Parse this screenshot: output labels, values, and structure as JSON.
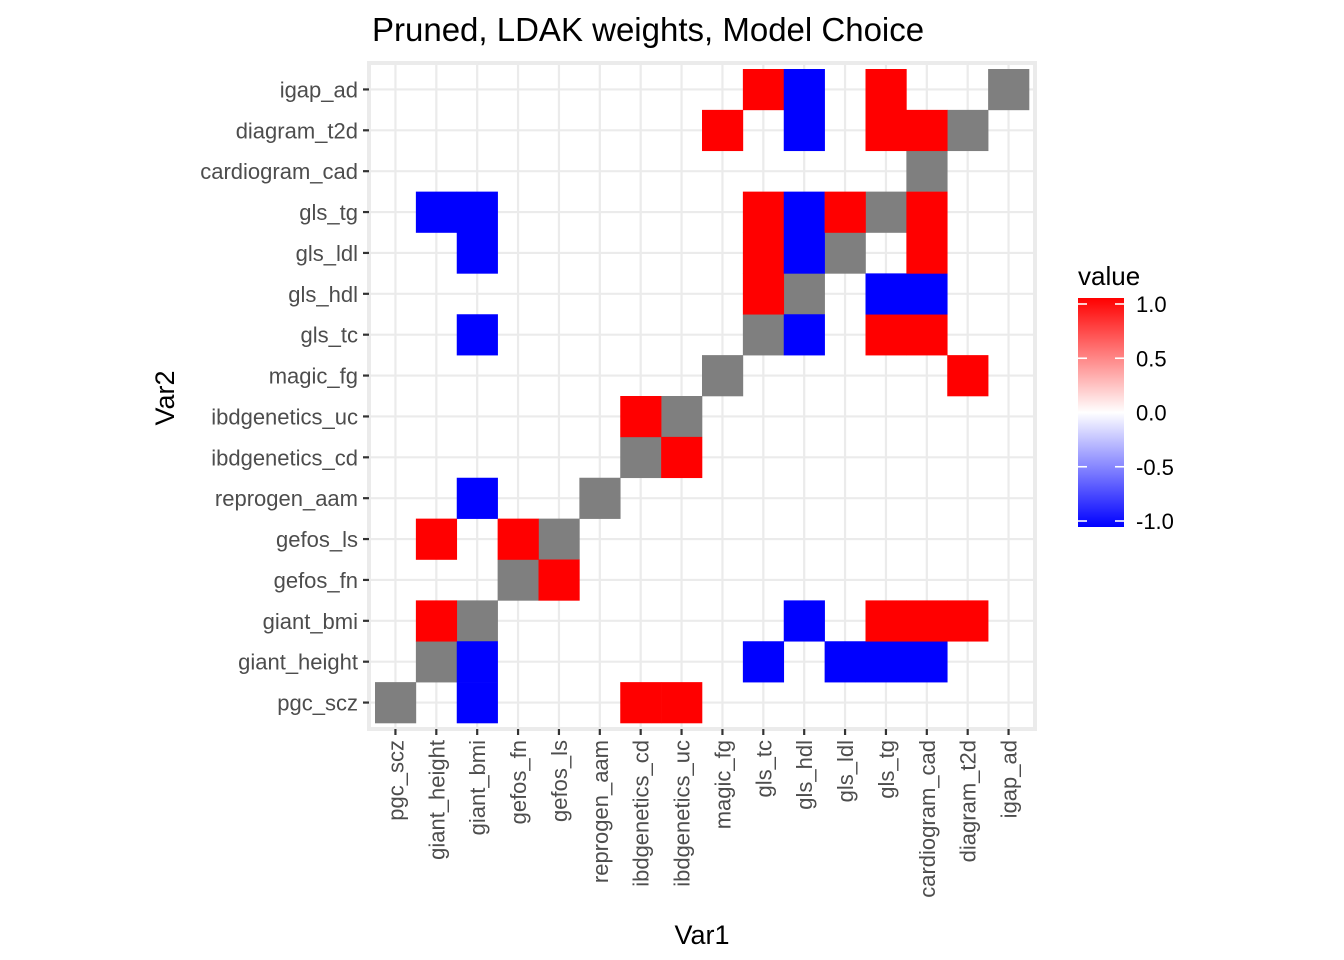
{
  "chart_data": {
    "type": "heatmap",
    "title": "Pruned, LDAK weights, Model Choice",
    "xlabel": "Var1",
    "ylabel": "Var2",
    "x_categories": [
      "pgc_scz",
      "giant_height",
      "giant_bmi",
      "gefos_fn",
      "gefos_ls",
      "reprogen_aam",
      "ibdgenetics_cd",
      "ibdgenetics_uc",
      "magic_fg",
      "gls_tc",
      "gls_hdl",
      "gls_ldl",
      "gls_tg",
      "cardiogram_cad",
      "diagram_t2d",
      "igap_ad"
    ],
    "y_categories": [
      "pgc_scz",
      "giant_height",
      "giant_bmi",
      "gefos_fn",
      "gefos_ls",
      "reprogen_aam",
      "ibdgenetics_cd",
      "ibdgenetics_uc",
      "magic_fg",
      "gls_tc",
      "gls_hdl",
      "gls_ldl",
      "gls_tg",
      "cardiogram_cad",
      "diagram_t2d",
      "igap_ad"
    ],
    "diagonal": "NA",
    "cells": [
      {
        "x": "giant_bmi",
        "y": "pgc_scz",
        "value": -1
      },
      {
        "x": "ibdgenetics_cd",
        "y": "pgc_scz",
        "value": 1
      },
      {
        "x": "ibdgenetics_uc",
        "y": "pgc_scz",
        "value": 1
      },
      {
        "x": "giant_bmi",
        "y": "giant_height",
        "value": -1
      },
      {
        "x": "gls_tc",
        "y": "giant_height",
        "value": -1
      },
      {
        "x": "gls_ldl",
        "y": "giant_height",
        "value": -1
      },
      {
        "x": "gls_tg",
        "y": "giant_height",
        "value": -1
      },
      {
        "x": "cardiogram_cad",
        "y": "giant_height",
        "value": -1
      },
      {
        "x": "giant_height",
        "y": "giant_bmi",
        "value": 1
      },
      {
        "x": "gls_hdl",
        "y": "giant_bmi",
        "value": -1
      },
      {
        "x": "gls_tg",
        "y": "giant_bmi",
        "value": 1
      },
      {
        "x": "cardiogram_cad",
        "y": "giant_bmi",
        "value": 1
      },
      {
        "x": "diagram_t2d",
        "y": "giant_bmi",
        "value": 1
      },
      {
        "x": "gefos_ls",
        "y": "gefos_fn",
        "value": 1
      },
      {
        "x": "giant_height",
        "y": "gefos_ls",
        "value": 1
      },
      {
        "x": "gefos_fn",
        "y": "gefos_ls",
        "value": 1
      },
      {
        "x": "giant_bmi",
        "y": "reprogen_aam",
        "value": -1
      },
      {
        "x": "ibdgenetics_uc",
        "y": "ibdgenetics_cd",
        "value": 1
      },
      {
        "x": "ibdgenetics_cd",
        "y": "ibdgenetics_uc",
        "value": 1
      },
      {
        "x": "diagram_t2d",
        "y": "magic_fg",
        "value": 1
      },
      {
        "x": "giant_bmi",
        "y": "gls_tc",
        "value": -1
      },
      {
        "x": "gls_hdl",
        "y": "gls_tc",
        "value": -1
      },
      {
        "x": "gls_tg",
        "y": "gls_tc",
        "value": 1
      },
      {
        "x": "cardiogram_cad",
        "y": "gls_tc",
        "value": 1
      },
      {
        "x": "gls_tc",
        "y": "gls_hdl",
        "value": 1
      },
      {
        "x": "gls_tg",
        "y": "gls_hdl",
        "value": -1
      },
      {
        "x": "cardiogram_cad",
        "y": "gls_hdl",
        "value": -1
      },
      {
        "x": "giant_bmi",
        "y": "gls_ldl",
        "value": -1
      },
      {
        "x": "gls_tc",
        "y": "gls_ldl",
        "value": 1
      },
      {
        "x": "gls_hdl",
        "y": "gls_ldl",
        "value": -1
      },
      {
        "x": "cardiogram_cad",
        "y": "gls_ldl",
        "value": 1
      },
      {
        "x": "giant_height",
        "y": "gls_tg",
        "value": -1
      },
      {
        "x": "giant_bmi",
        "y": "gls_tg",
        "value": -1
      },
      {
        "x": "gls_tc",
        "y": "gls_tg",
        "value": 1
      },
      {
        "x": "gls_hdl",
        "y": "gls_tg",
        "value": -1
      },
      {
        "x": "gls_ldl",
        "y": "gls_tg",
        "value": 1
      },
      {
        "x": "cardiogram_cad",
        "y": "gls_tg",
        "value": 1
      },
      {
        "x": "magic_fg",
        "y": "diagram_t2d",
        "value": 1
      },
      {
        "x": "gls_hdl",
        "y": "diagram_t2d",
        "value": -1
      },
      {
        "x": "gls_tg",
        "y": "diagram_t2d",
        "value": 1
      },
      {
        "x": "cardiogram_cad",
        "y": "diagram_t2d",
        "value": 1
      },
      {
        "x": "gls_tc",
        "y": "igap_ad",
        "value": 1
      },
      {
        "x": "gls_hdl",
        "y": "igap_ad",
        "value": -1
      },
      {
        "x": "gls_tg",
        "y": "igap_ad",
        "value": 1
      }
    ],
    "legend": {
      "title": "value",
      "placement": "right",
      "breaks": [
        1.0,
        0.5,
        0.0,
        -0.5,
        -1.0
      ],
      "break_labels": [
        "1.0",
        "0.5",
        "0.0",
        "-0.5",
        "-1.0"
      ],
      "limits": [
        -1,
        1
      ]
    },
    "colors": {
      "high": "#ff0000",
      "mid": "#ffffff",
      "low": "#0000ff",
      "na": "#7f7f7f",
      "panel_grid": "#ebebeb"
    },
    "grid": true
  }
}
